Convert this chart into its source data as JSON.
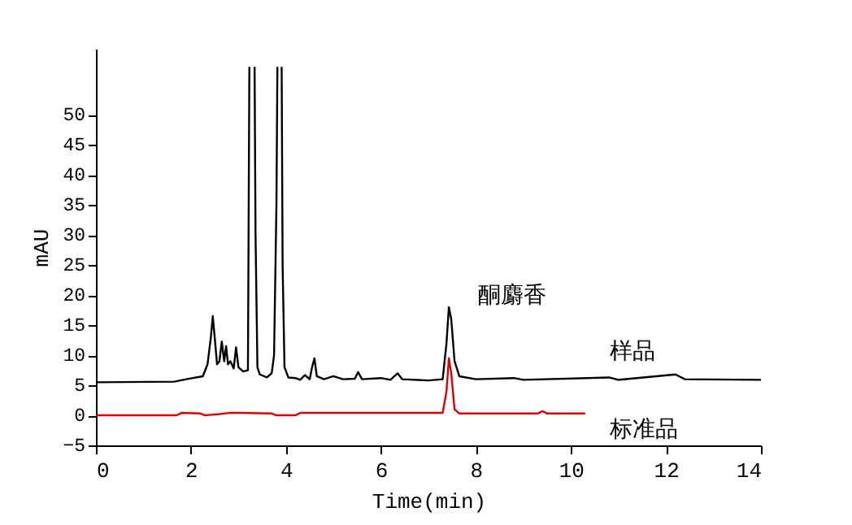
{
  "chart_data": {
    "type": "line",
    "xlabel": "Time(min)",
    "ylabel": "mAU",
    "xlim": [
      0,
      14
    ],
    "ylim": [
      -5,
      61
    ],
    "xticks": [
      0,
      2,
      4,
      6,
      8,
      10,
      12,
      14
    ],
    "yticks": [
      -5,
      0,
      5,
      10,
      15,
      20,
      25,
      30,
      35,
      40,
      45,
      50
    ],
    "grid": false,
    "legend": false,
    "marker": "none",
    "line_style": "solid",
    "annotations": [
      {
        "text": "酮麝香",
        "x": 7.43,
        "y": 18
      }
    ],
    "series": [
      {
        "name": "样品",
        "color": "#000000",
        "x": [
          0,
          1.65,
          1.9,
          2.25,
          2.35,
          2.42,
          2.46,
          2.5,
          2.55,
          2.6,
          2.65,
          2.7,
          2.74,
          2.78,
          2.83,
          2.9,
          2.95,
          3.0,
          3.1,
          3.2,
          3.23,
          3.24,
          3.33,
          3.34,
          3.36,
          3.4,
          3.45,
          3.6,
          3.7,
          3.75,
          3.8,
          3.82,
          3.83,
          3.9,
          3.91,
          3.93,
          3.97,
          4.05,
          4.2,
          4.3,
          4.4,
          4.5,
          4.55,
          4.6,
          4.65,
          4.8,
          5.0,
          5.2,
          5.45,
          5.52,
          5.6,
          6.0,
          6.2,
          6.35,
          6.45,
          7.0,
          7.3,
          7.38,
          7.43,
          7.48,
          7.55,
          7.65,
          8.0,
          8.8,
          9.0,
          10.8,
          11.0,
          12.2,
          12.4,
          14
        ],
        "values": [
          5.5,
          5.6,
          6.0,
          6.5,
          8.5,
          13,
          16.5,
          13,
          8.5,
          9,
          12.3,
          9,
          11.5,
          8.5,
          9,
          7.8,
          11.3,
          8,
          7.3,
          7.5,
          58,
          null,
          null,
          58,
          30,
          8,
          6.8,
          6.3,
          7,
          10,
          35,
          58,
          null,
          null,
          58,
          25,
          8,
          6.3,
          6.2,
          5.9,
          6.7,
          6.0,
          8,
          9.5,
          6.5,
          6.0,
          6.5,
          6.0,
          6.1,
          7.2,
          6.0,
          6.2,
          5.9,
          7.0,
          6.0,
          5.8,
          6.0,
          12,
          18,
          16,
          9,
          6.5,
          6.0,
          6.2,
          5.9,
          6.3,
          5.9,
          6.8,
          6.0,
          5.9
        ]
      },
      {
        "name": "标准品",
        "color": "#e00000",
        "x": [
          0,
          1.7,
          1.8,
          2.2,
          2.3,
          2.6,
          2.8,
          3.0,
          3.7,
          3.8,
          4.2,
          4.3,
          5.0,
          7.3,
          7.38,
          7.43,
          7.48,
          7.55,
          7.65,
          9.3,
          9.4,
          9.5,
          10.3
        ],
        "values": [
          0,
          0,
          0.4,
          0.3,
          0,
          0.2,
          0.4,
          0.4,
          0.3,
          0,
          0,
          0.4,
          0.4,
          0.4,
          4,
          9.5,
          7,
          1,
          0.3,
          0.3,
          0.7,
          0.3,
          0.3
        ]
      }
    ]
  }
}
